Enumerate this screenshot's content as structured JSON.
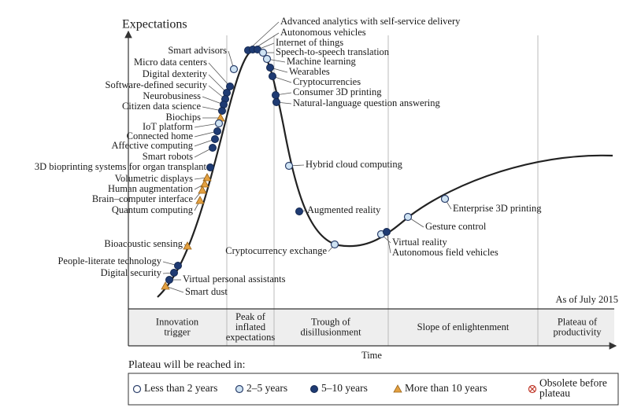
{
  "header": {
    "y_axis": "Expectations",
    "x_axis": "Time",
    "as_of": "As of July 2015"
  },
  "phases": [
    [
      "Innovation",
      "trigger"
    ],
    [
      "Peak of",
      "inflated",
      "expectations"
    ],
    [
      "Trough of",
      "disillusionment"
    ],
    [
      "Slope of enlightenment"
    ],
    [
      "Plateau of",
      "productivity"
    ]
  ],
  "technologies": [
    {
      "label": "Smart advisors",
      "legend_item": 1
    },
    {
      "label": "Micro data centers",
      "legend_item": 2
    },
    {
      "label": "Digital dexterity",
      "legend_item": 2
    },
    {
      "label": "Software-defined security",
      "legend_item": 2
    },
    {
      "label": "Neurobusiness",
      "legend_item": 2
    },
    {
      "label": "Citizen data science",
      "legend_item": 2
    },
    {
      "label": "Biochips",
      "legend_item": 3
    },
    {
      "label": "IoT platform",
      "legend_item": 1
    },
    {
      "label": "Connected home",
      "legend_item": 2
    },
    {
      "label": "Affective computing",
      "legend_item": 2
    },
    {
      "label": "Smart robots",
      "legend_item": 2
    },
    {
      "label": "3D bioprinting systems for organ transplant",
      "legend_item": 2
    },
    {
      "label": "Volumetric displays",
      "legend_item": 3
    },
    {
      "label": "Human augmentation",
      "legend_item": 3
    },
    {
      "label": "Brain–computer interface",
      "legend_item": 3
    },
    {
      "label": "Quantum computing",
      "legend_item": 3
    },
    {
      "label": "Bioacoustic sensing",
      "legend_item": 3
    },
    {
      "label": "People-literate technology",
      "legend_item": 2
    },
    {
      "label": "Digital security",
      "legend_item": 2
    },
    {
      "label": "Virtual personal assistants",
      "legend_item": 2
    },
    {
      "label": "Smart dust",
      "legend_item": 3
    },
    {
      "label": "Advanced analytics with self-service delivery",
      "legend_item": 2
    },
    {
      "label": "Autonomous vehicles",
      "legend_item": 2
    },
    {
      "label": "Internet of things",
      "legend_item": 2
    },
    {
      "label": "Speech-to-speech translation",
      "legend_item": 1
    },
    {
      "label": "Machine learning",
      "legend_item": 1
    },
    {
      "label": "Wearables",
      "legend_item": 2
    },
    {
      "label": "Cryptocurrencies",
      "legend_item": 2
    },
    {
      "label": "Consumer 3D printing",
      "legend_item": 2
    },
    {
      "label": "Natural-language question answering",
      "legend_item": 2
    },
    {
      "label": "Hybrid cloud computing",
      "legend_item": 1
    },
    {
      "label": "Augmented reality",
      "legend_item": 2
    },
    {
      "label": "Cryptocurrency exchange",
      "legend_item": 1
    },
    {
      "label": "Virtual reality",
      "legend_item": 1
    },
    {
      "label": "Autonomous field vehicles",
      "legend_item": 2
    },
    {
      "label": "Gesture control",
      "legend_item": 1
    },
    {
      "label": "Enterprise 3D printing",
      "legend_item": 1
    }
  ],
  "legend": {
    "title": "Plateau will be reached in:",
    "items": [
      [
        "Less than 2 years"
      ],
      [
        "2–5 years"
      ],
      [
        "5–10 years"
      ],
      [
        "More than 10 years"
      ],
      [
        "Obsolete before",
        "plateau"
      ]
    ]
  }
}
